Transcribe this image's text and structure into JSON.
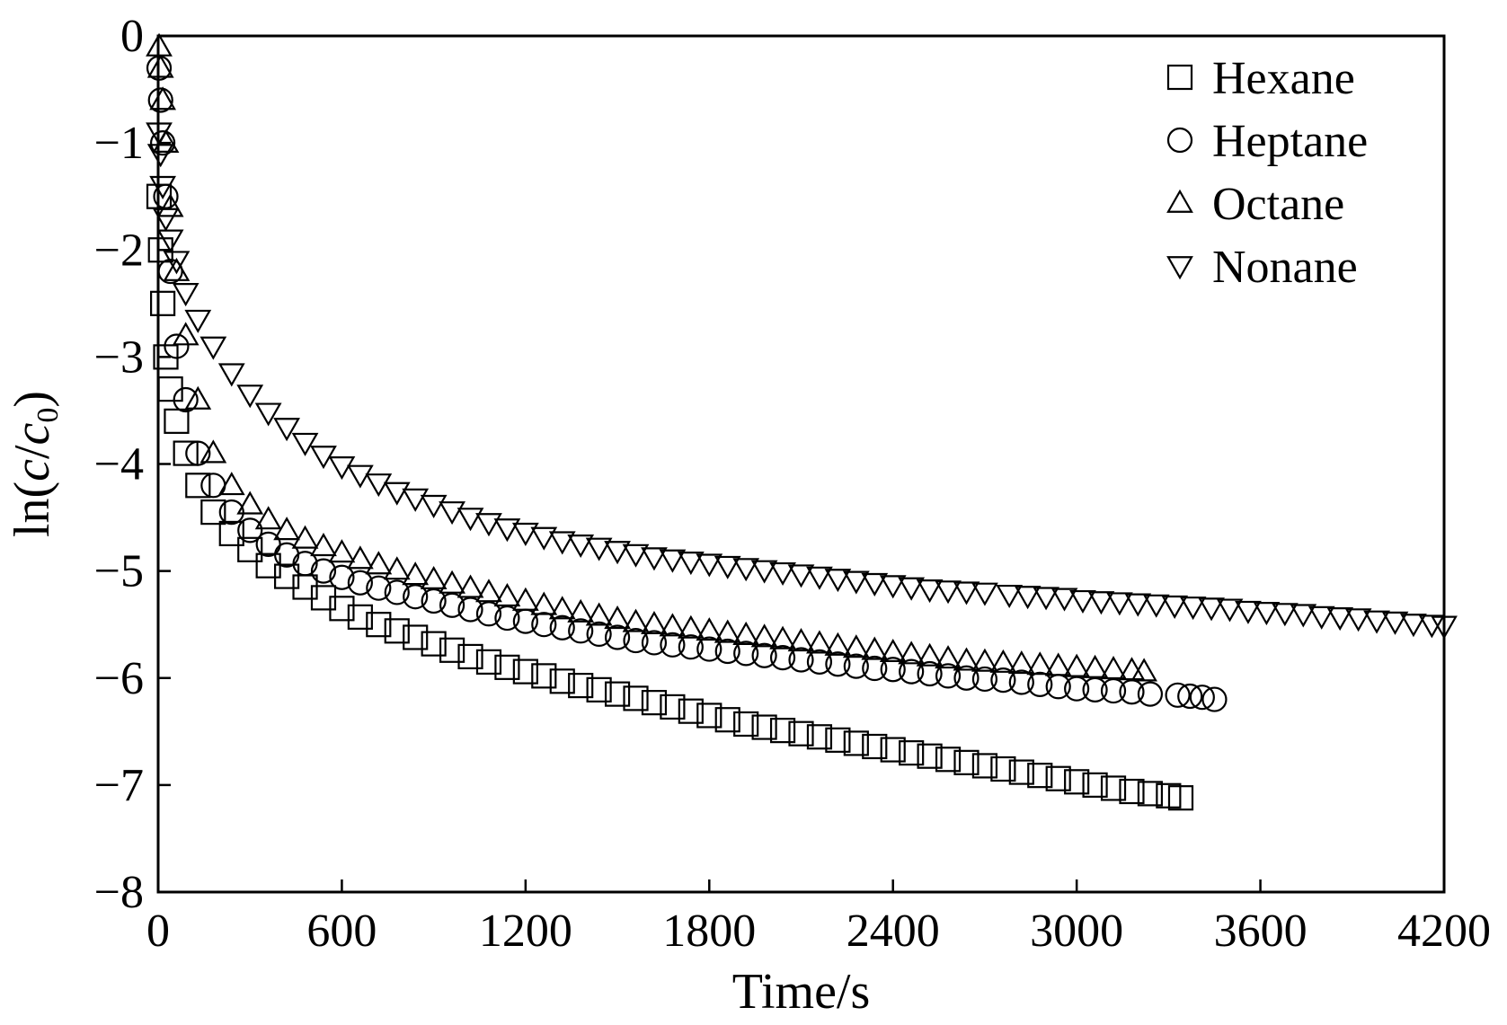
{
  "chart_data": {
    "type": "scatter",
    "title": "",
    "xlabel": "Time/s",
    "ylabel": "ln(c/c0)",
    "ylabel_parts": {
      "prefix": "ln(",
      "c1": "c",
      "slash": "/",
      "c2": "c",
      "sub": "0",
      "suffix": ")"
    },
    "xlim": [
      0,
      4200
    ],
    "ylim": [
      -8,
      0
    ],
    "xticks": [
      0,
      600,
      1200,
      1800,
      2400,
      3000,
      3600,
      4200
    ],
    "yticks": [
      0,
      -1,
      -2,
      -3,
      -4,
      -5,
      -6,
      -7,
      -8
    ],
    "xtick_labels": [
      "0",
      "600",
      "1200",
      "1800",
      "2400",
      "3000",
      "3600",
      "4200"
    ],
    "ytick_labels": [
      "0",
      "−1",
      "−2",
      "−3",
      "−4",
      "−5",
      "−6",
      "−7",
      "−8"
    ],
    "grid": false,
    "legend": "top-right",
    "series": [
      {
        "name": "Hexane",
        "marker": "square",
        "x": [
          3,
          8,
          15,
          25,
          40,
          60,
          90,
          130,
          180,
          240,
          300,
          360,
          420,
          480,
          540,
          600,
          660,
          720,
          780,
          840,
          900,
          960,
          1020,
          1080,
          1140,
          1200,
          1260,
          1320,
          1380,
          1440,
          1500,
          1560,
          1620,
          1680,
          1740,
          1800,
          1860,
          1920,
          1980,
          2040,
          2100,
          2160,
          2220,
          2280,
          2340,
          2400,
          2460,
          2520,
          2580,
          2640,
          2700,
          2760,
          2820,
          2880,
          2940,
          3000,
          3060,
          3120,
          3180,
          3240,
          3300,
          3340
        ],
        "y": [
          -1.5,
          -2.0,
          -2.5,
          -3.0,
          -3.3,
          -3.6,
          -3.9,
          -4.2,
          -4.45,
          -4.65,
          -4.8,
          -4.95,
          -5.05,
          -5.15,
          -5.25,
          -5.35,
          -5.43,
          -5.5,
          -5.56,
          -5.62,
          -5.68,
          -5.74,
          -5.8,
          -5.85,
          -5.9,
          -5.94,
          -5.98,
          -6.03,
          -6.07,
          -6.11,
          -6.15,
          -6.19,
          -6.23,
          -6.27,
          -6.31,
          -6.35,
          -6.39,
          -6.43,
          -6.46,
          -6.49,
          -6.52,
          -6.55,
          -6.58,
          -6.61,
          -6.64,
          -6.67,
          -6.7,
          -6.73,
          -6.76,
          -6.79,
          -6.82,
          -6.85,
          -6.88,
          -6.91,
          -6.94,
          -6.97,
          -7.0,
          -7.03,
          -7.06,
          -7.08,
          -7.1,
          -7.12
        ]
      },
      {
        "name": "Heptane",
        "marker": "circle",
        "x": [
          3,
          8,
          15,
          25,
          40,
          60,
          90,
          130,
          180,
          240,
          300,
          360,
          420,
          480,
          540,
          600,
          660,
          720,
          780,
          840,
          900,
          960,
          1020,
          1080,
          1140,
          1200,
          1260,
          1320,
          1380,
          1440,
          1500,
          1560,
          1620,
          1680,
          1740,
          1800,
          1860,
          1920,
          1980,
          2040,
          2100,
          2160,
          2220,
          2280,
          2340,
          2400,
          2460,
          2520,
          2580,
          2640,
          2700,
          2760,
          2820,
          2880,
          2940,
          3000,
          3060,
          3120,
          3180,
          3240,
          3330,
          3370,
          3410,
          3450
        ],
        "y": [
          -0.3,
          -0.6,
          -1.0,
          -1.5,
          -2.2,
          -2.9,
          -3.4,
          -3.9,
          -4.2,
          -4.45,
          -4.62,
          -4.75,
          -4.85,
          -4.93,
          -5.0,
          -5.06,
          -5.11,
          -5.16,
          -5.2,
          -5.24,
          -5.28,
          -5.32,
          -5.36,
          -5.4,
          -5.44,
          -5.47,
          -5.5,
          -5.53,
          -5.56,
          -5.59,
          -5.62,
          -5.65,
          -5.67,
          -5.69,
          -5.71,
          -5.73,
          -5.75,
          -5.77,
          -5.79,
          -5.81,
          -5.83,
          -5.85,
          -5.87,
          -5.89,
          -5.91,
          -5.92,
          -5.94,
          -5.96,
          -5.98,
          -6.0,
          -6.01,
          -6.02,
          -6.04,
          -6.06,
          -6.08,
          -6.1,
          -6.11,
          -6.12,
          -6.13,
          -6.15,
          -6.16,
          -6.17,
          -6.18,
          -6.2
        ]
      },
      {
        "name": "Octane",
        "marker": "triangle-up",
        "x": [
          3,
          8,
          15,
          25,
          40,
          60,
          90,
          130,
          180,
          240,
          300,
          360,
          420,
          480,
          540,
          600,
          660,
          720,
          780,
          840,
          900,
          960,
          1020,
          1080,
          1140,
          1200,
          1260,
          1320,
          1380,
          1440,
          1500,
          1560,
          1620,
          1680,
          1740,
          1800,
          1860,
          1920,
          1980,
          2040,
          2100,
          2160,
          2220,
          2280,
          2340,
          2400,
          2460,
          2520,
          2580,
          2640,
          2700,
          2760,
          2820,
          2880,
          2940,
          3000,
          3060,
          3120,
          3180,
          3220
        ],
        "y": [
          -0.1,
          -0.3,
          -0.6,
          -1.0,
          -1.6,
          -2.2,
          -2.8,
          -3.4,
          -3.9,
          -4.2,
          -4.38,
          -4.52,
          -4.62,
          -4.7,
          -4.77,
          -4.83,
          -4.89,
          -4.94,
          -4.99,
          -5.04,
          -5.08,
          -5.12,
          -5.16,
          -5.2,
          -5.24,
          -5.28,
          -5.32,
          -5.36,
          -5.39,
          -5.42,
          -5.45,
          -5.48,
          -5.5,
          -5.52,
          -5.54,
          -5.56,
          -5.58,
          -5.6,
          -5.62,
          -5.64,
          -5.66,
          -5.68,
          -5.7,
          -5.72,
          -5.74,
          -5.76,
          -5.78,
          -5.8,
          -5.82,
          -5.84,
          -5.85,
          -5.86,
          -5.87,
          -5.88,
          -5.89,
          -5.9,
          -5.91,
          -5.92,
          -5.93,
          -5.94
        ]
      },
      {
        "name": "Nonane",
        "marker": "triangle-down",
        "x": [
          3,
          8,
          15,
          25,
          40,
          60,
          90,
          130,
          180,
          240,
          300,
          360,
          420,
          480,
          540,
          600,
          660,
          720,
          780,
          840,
          900,
          960,
          1020,
          1080,
          1140,
          1200,
          1260,
          1320,
          1380,
          1440,
          1500,
          1560,
          1620,
          1680,
          1740,
          1800,
          1860,
          1920,
          1980,
          2040,
          2100,
          2160,
          2220,
          2280,
          2340,
          2400,
          2460,
          2520,
          2580,
          2640,
          2700,
          2780,
          2840,
          2900,
          2960,
          3020,
          3080,
          3140,
          3200,
          3260,
          3320,
          3380,
          3440,
          3500,
          3560,
          3620,
          3680,
          3740,
          3800,
          3860,
          3920,
          3980,
          4040,
          4100,
          4160,
          4200
        ],
        "y": [
          -0.9,
          -1.1,
          -1.4,
          -1.7,
          -1.9,
          -2.1,
          -2.4,
          -2.65,
          -2.9,
          -3.15,
          -3.35,
          -3.52,
          -3.66,
          -3.8,
          -3.92,
          -4.02,
          -4.1,
          -4.18,
          -4.26,
          -4.32,
          -4.38,
          -4.44,
          -4.5,
          -4.55,
          -4.6,
          -4.64,
          -4.68,
          -4.72,
          -4.75,
          -4.78,
          -4.81,
          -4.84,
          -4.87,
          -4.89,
          -4.91,
          -4.93,
          -4.95,
          -4.97,
          -4.99,
          -5.01,
          -5.03,
          -5.05,
          -5.07,
          -5.09,
          -5.11,
          -5.13,
          -5.15,
          -5.17,
          -5.18,
          -5.19,
          -5.2,
          -5.22,
          -5.23,
          -5.24,
          -5.25,
          -5.27,
          -5.28,
          -5.29,
          -5.3,
          -5.31,
          -5.32,
          -5.33,
          -5.34,
          -5.35,
          -5.37,
          -5.38,
          -5.39,
          -5.4,
          -5.42,
          -5.43,
          -5.44,
          -5.46,
          -5.47,
          -5.49,
          -5.5,
          -5.51
        ]
      }
    ]
  }
}
